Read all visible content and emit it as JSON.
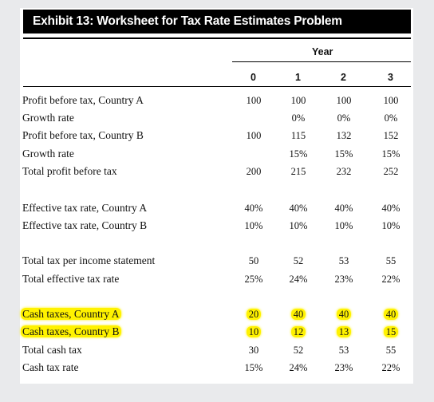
{
  "title": "Exhibit 13: Worksheet for Tax Rate Estimates Problem",
  "year_header": "Year",
  "columns": [
    "0",
    "1",
    "2",
    "3"
  ],
  "rows": [
    {
      "label": "Profit before tax, Country A",
      "values": [
        "100",
        "100",
        "100",
        "100"
      ],
      "highlighted": false
    },
    {
      "label": "Growth rate",
      "values": [
        "",
        "0%",
        "0%",
        "0%"
      ],
      "highlighted": false
    },
    {
      "label": "Profit before tax, Country B",
      "values": [
        "100",
        "115",
        "132",
        "152"
      ],
      "highlighted": false
    },
    {
      "label": "Growth rate",
      "values": [
        "",
        "15%",
        "15%",
        "15%"
      ],
      "highlighted": false
    },
    {
      "label": "Total profit before tax",
      "values": [
        "200",
        "215",
        "232",
        "252"
      ],
      "highlighted": false
    },
    {
      "label": "Effective tax rate, Country A",
      "values": [
        "40%",
        "40%",
        "40%",
        "40%"
      ],
      "highlighted": false
    },
    {
      "label": "Effective tax rate, Country B",
      "values": [
        "10%",
        "10%",
        "10%",
        "10%"
      ],
      "highlighted": false
    },
    {
      "label": "Total tax per income statement",
      "values": [
        "50",
        "52",
        "53",
        "55"
      ],
      "highlighted": false
    },
    {
      "label": "Total effective tax rate",
      "values": [
        "25%",
        "24%",
        "23%",
        "22%"
      ],
      "highlighted": false
    },
    {
      "label": "Cash taxes, Country A",
      "values": [
        "20",
        "40",
        "40",
        "40"
      ],
      "highlighted": true
    },
    {
      "label": "Cash taxes, Country B",
      "values": [
        "10",
        "12",
        "13",
        "15"
      ],
      "highlighted": true
    },
    {
      "label": "Total cash tax",
      "values": [
        "30",
        "52",
        "53",
        "55"
      ],
      "highlighted": false
    },
    {
      "label": "Cash tax rate",
      "values": [
        "15%",
        "24%",
        "23%",
        "22%"
      ],
      "highlighted": false
    }
  ],
  "highlight_color": "#fff200"
}
